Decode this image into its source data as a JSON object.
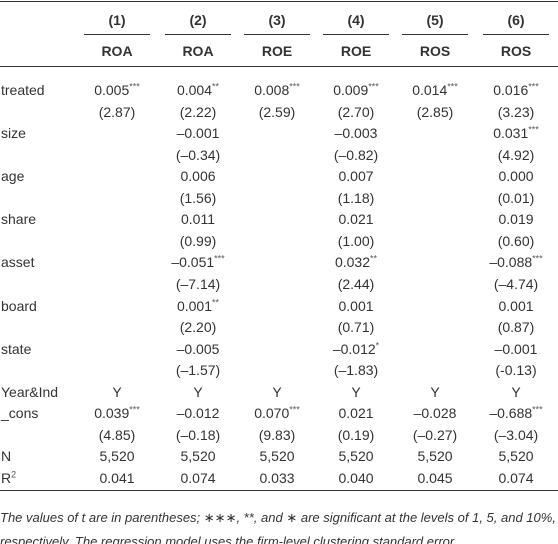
{
  "columns": [
    {
      "number": "(1)",
      "dep": "ROA"
    },
    {
      "number": "(2)",
      "dep": "ROA"
    },
    {
      "number": "(3)",
      "dep": "ROE"
    },
    {
      "number": "(4)",
      "dep": "ROE"
    },
    {
      "number": "(5)",
      "dep": "ROS"
    },
    {
      "number": "(6)",
      "dep": "ROS"
    }
  ],
  "rows": [
    {
      "label": "treated",
      "cells": [
        {
          "v": "0.005",
          "s": "***"
        },
        {
          "v": "0.004",
          "s": "**"
        },
        {
          "v": "0.008",
          "s": "***"
        },
        {
          "v": "0.009",
          "s": "***"
        },
        {
          "v": "0.014",
          "s": "***"
        },
        {
          "v": "0.016",
          "s": "***"
        }
      ]
    },
    {
      "cells": [
        "(2.87)",
        "(2.22)",
        "(2.59)",
        "(2.70)",
        "(2.85)",
        "(3.23)"
      ]
    },
    {
      "label": "size",
      "cells": [
        null,
        "–0.001",
        null,
        "–0.003",
        null,
        {
          "v": "0.031",
          "s": "***"
        }
      ]
    },
    {
      "cells": [
        null,
        "(–0.34)",
        null,
        "(–0.82)",
        null,
        "(4.92)"
      ]
    },
    {
      "label": "age",
      "cells": [
        null,
        "0.006",
        null,
        "0.007",
        null,
        "0.000"
      ]
    },
    {
      "cells": [
        null,
        "(1.56)",
        null,
        "(1.18)",
        null,
        "(0.01)"
      ]
    },
    {
      "label": "share",
      "cells": [
        null,
        "0.011",
        null,
        "0.021",
        null,
        "0.019"
      ]
    },
    {
      "cells": [
        null,
        "(0.99)",
        null,
        "(1.00)",
        null,
        "(0.60)"
      ]
    },
    {
      "label": "asset",
      "cells": [
        null,
        {
          "v": "–0.051",
          "s": "***"
        },
        null,
        {
          "v": "0.032",
          "s": "**"
        },
        null,
        {
          "v": "–0.088",
          "s": "***"
        }
      ]
    },
    {
      "cells": [
        null,
        "(–7.14)",
        null,
        "(2.44)",
        null,
        "(–4.74)"
      ]
    },
    {
      "label": "board",
      "cells": [
        null,
        {
          "v": "0.001",
          "s": "**"
        },
        null,
        "0.001",
        null,
        "0.001"
      ]
    },
    {
      "cells": [
        null,
        "(2.20)",
        null,
        "(0.71)",
        null,
        "(0.87)"
      ]
    },
    {
      "label": "state",
      "cells": [
        null,
        "–0.005",
        null,
        {
          "v": "–0.012",
          "s": "*"
        },
        null,
        "–0.001"
      ]
    },
    {
      "cells": [
        null,
        "(–1.57)",
        null,
        "(–1.83)",
        null,
        "(-0.13)"
      ]
    },
    {
      "label": "Year&Ind",
      "cells": [
        "Y",
        "Y",
        "Y",
        "Y",
        "Y",
        "Y"
      ]
    },
    {
      "label": "_cons",
      "cells": [
        {
          "v": "0.039",
          "s": "***"
        },
        "–0.012",
        {
          "v": "0.070",
          "s": "***"
        },
        "0.021",
        "–0.028",
        {
          "v": "–0.688",
          "s": "***"
        }
      ]
    },
    {
      "cells": [
        "(4.85)",
        "(–0.18)",
        "(9.83)",
        "(0.19)",
        "(–0.27)",
        "(–3.04)"
      ]
    },
    {
      "label": "N",
      "cells": [
        "5,520",
        "5,520",
        "5,520",
        "5,520",
        "5,520",
        "5,520"
      ]
    },
    {
      "label": "R",
      "sup": "2",
      "cells": [
        "0.041",
        "0.074",
        "0.033",
        "0.040",
        "0.045",
        "0.074"
      ]
    }
  ],
  "note": "The values of t are in parentheses; ∗∗∗, **, and ∗ are significant at the levels of 1, 5, and 10%, respectively. The regression model uses the firm-level clustering standard error."
}
